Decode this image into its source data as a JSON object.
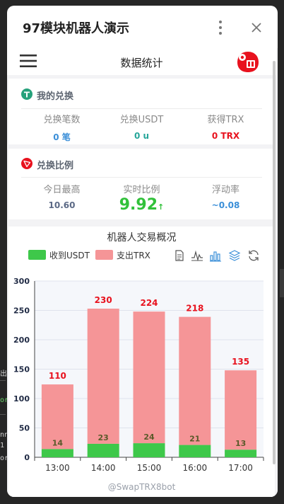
{
  "app_title": "97模块机器人演示",
  "nav": {
    "title": "数据统计"
  },
  "exchange": {
    "title": "我的兑换",
    "cols": [
      {
        "label": "兑换笔数",
        "value": "0 笔",
        "color": "#3b8fd8"
      },
      {
        "label": "兑换USDT",
        "value": "0 u",
        "color": "#26a69a"
      },
      {
        "label": "获得TRX",
        "value": "0 TRX",
        "color": "#e8121e"
      }
    ]
  },
  "ratio": {
    "title": "兑换比例",
    "cols": [
      {
        "label": "今日最高",
        "value": "10.60"
      },
      {
        "label": "实时比例",
        "value": "9.92",
        "arrow": "↑"
      },
      {
        "label": "浮动率",
        "value": "~0.08"
      }
    ]
  },
  "colors": {
    "usdt": "#3ec84a",
    "trx": "#f59597",
    "trx_red": "#e8121e",
    "accent_green": "#31c13a",
    "blue": "#3b8fd8"
  },
  "chart_data": {
    "type": "bar",
    "title": "机器人交易概况",
    "categories": [
      "13:00",
      "14:00",
      "15:00",
      "16:00",
      "17:00"
    ],
    "series": [
      {
        "name": "收到USDT",
        "values": [
          14,
          23,
          24,
          21,
          13
        ]
      },
      {
        "name": "支出TRX",
        "values": [
          110,
          230,
          224,
          218,
          135
        ]
      }
    ],
    "stacked": true,
    "ylim": [
      0,
      300
    ],
    "yticks": [
      0,
      50,
      100,
      150,
      200,
      250,
      300
    ],
    "legend": "top-left"
  },
  "toolbox_icons": [
    "data-view-icon",
    "line-chart-icon",
    "bar-chart-icon",
    "stack-icon",
    "restore-icon"
  ],
  "watermark": "@SwapTRX8bot",
  "background": {
    "lines": [
      "出",
      "or",
      "nn",
      "1 3",
      "or"
    ]
  }
}
